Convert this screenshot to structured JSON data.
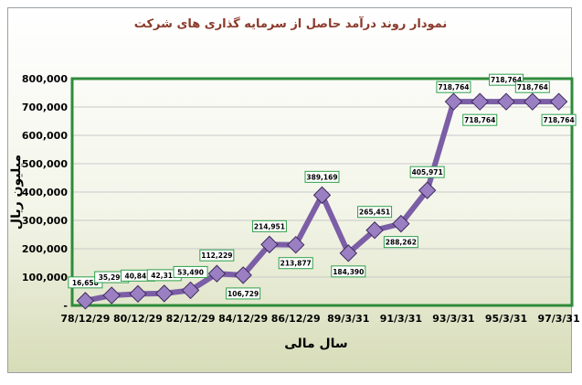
{
  "chart_data": {
    "type": "line",
    "title": "نمودار روند درآمد حاصل از سرمایه گذاری های شرکت",
    "xlabel": "سال مالی",
    "ylabel": "میلیون ریال",
    "ylim": [
      0,
      800000
    ],
    "yticks": [
      "-",
      "100,000",
      "200,000",
      "300,000",
      "400,000",
      "500,000",
      "600,000",
      "700,000",
      "800,000"
    ],
    "xticks": [
      "78/12/29",
      "80/12/29",
      "82/12/29",
      "84/12/29",
      "86/12/29",
      "89/3/31",
      "91/3/31",
      "93/3/31",
      "95/3/31",
      "97/3/31"
    ],
    "grid": true,
    "line_color": "#7b5ea6",
    "marker_color": "#9b7fc3",
    "data_label_border": "#2ea04a",
    "series": [
      {
        "values": [
          16658,
          35299,
          40842,
          42315,
          53490,
          112229,
          106729,
          214951,
          213877,
          389169,
          184390,
          265451,
          288262,
          405971,
          718764,
          718764,
          718764,
          718764,
          718764
        ],
        "labels": [
          "16,658",
          "35,299",
          "40,842",
          "42,315",
          "53,490",
          "112,229",
          "106,729",
          "214,951",
          "213,877",
          "389,169",
          "184,390",
          "265,451",
          "288,262",
          "405,971",
          "718,764",
          "718,764",
          "718,764",
          "718,764",
          "718,764"
        ]
      }
    ]
  }
}
